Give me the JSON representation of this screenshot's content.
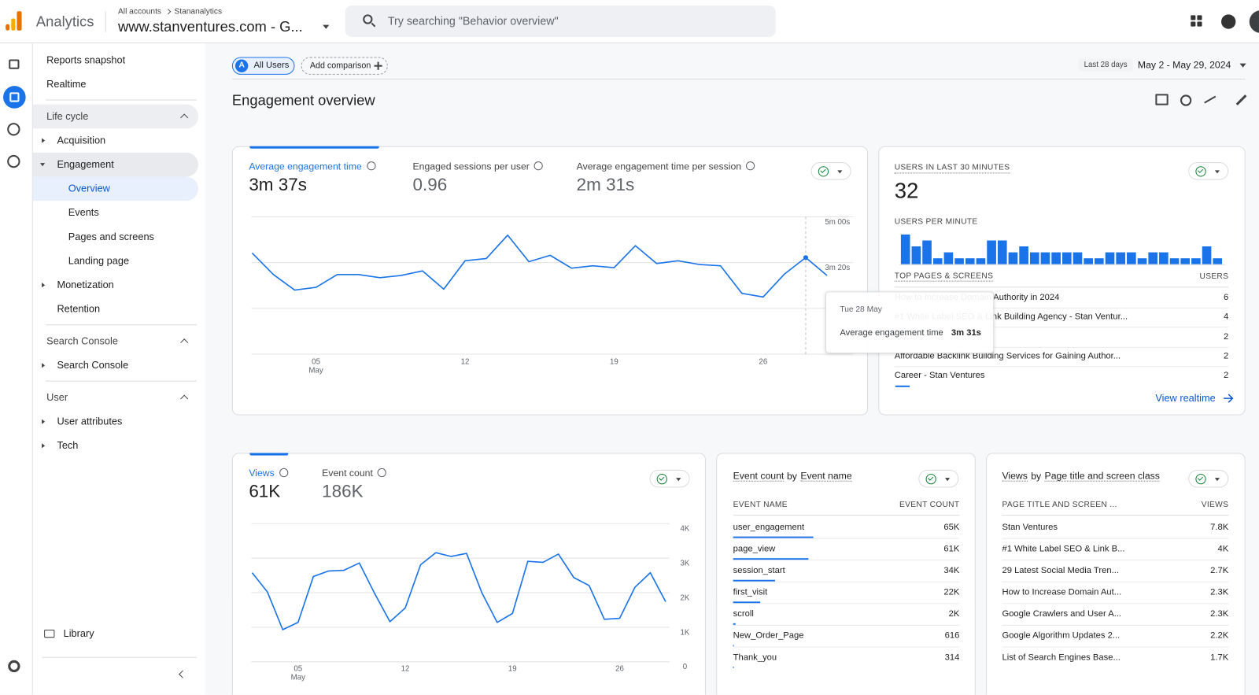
{
  "header": {
    "product": "Analytics",
    "breadcrumb": [
      "All accounts",
      "Stananalytics"
    ],
    "property": "www.stanventures.com - G...",
    "search_placeholder": "Try searching \"Behavior overview\""
  },
  "nav": {
    "top_items": [
      "Reports snapshot",
      "Realtime"
    ],
    "sections": [
      {
        "title": "Life cycle",
        "highlighted": true,
        "items": [
          {
            "label": "Acquisition",
            "expandable": true
          },
          {
            "label": "Engagement",
            "expandable": true,
            "children": [
              "Overview",
              "Events",
              "Pages and screens",
              "Landing page"
            ],
            "selected_child": 0
          },
          {
            "label": "Monetization",
            "expandable": true
          },
          {
            "label": "Retention",
            "expandable": false
          }
        ]
      },
      {
        "title": "Search Console",
        "highlighted": false,
        "items": [
          {
            "label": "Search Console",
            "expandable": true
          }
        ]
      },
      {
        "title": "User",
        "highlighted": false,
        "items": [
          {
            "label": "User attributes",
            "expandable": true
          },
          {
            "label": "Tech",
            "expandable": true
          }
        ]
      }
    ],
    "library": "Library"
  },
  "toolbar": {
    "segment_badge": "A",
    "segment": "All Users",
    "add_comparison": "Add comparison",
    "date_label": "Last 28 days",
    "date_range": "May 2 - May 29, 2024"
  },
  "page_title": "Engagement overview",
  "engagement_card": {
    "metrics": [
      {
        "label": "Average engagement time",
        "value": "3m 37s"
      },
      {
        "label": "Engaged sessions per user",
        "value": "0.96"
      },
      {
        "label": "Average engagement time per session",
        "value": "2m 31s"
      }
    ],
    "chart": {
      "type": "line",
      "color": "#1a73e8",
      "categories": [
        null,
        null,
        null,
        "05",
        null,
        null,
        null,
        null,
        null,
        null,
        "12",
        null,
        null,
        null,
        null,
        null,
        null,
        "19",
        null,
        null,
        null,
        null,
        null,
        null,
        "26",
        null,
        null,
        null
      ],
      "x_sublabel": "May",
      "values": [
        221,
        174,
        140,
        146,
        174,
        174,
        167,
        172,
        182,
        142,
        204,
        209,
        260,
        202,
        216,
        188,
        193,
        189,
        237,
        198,
        204,
        196,
        193,
        133,
        125,
        175,
        211,
        172
      ],
      "ylim": [
        0,
        300
      ],
      "yticks": [
        {
          "value": 300,
          "label": "5m 00s"
        },
        {
          "value": 200,
          "label": "3m 20s"
        }
      ]
    },
    "tooltip": {
      "index": 26,
      "date": "Tue 28 May",
      "label": "Average engagement time",
      "value": "3m 31s"
    }
  },
  "realtime_card": {
    "users_label": "USERS IN LAST 30 MINUTES",
    "users": 32,
    "per_minute_label": "USERS PER MINUTE",
    "per_minute_color": "#1a73e8",
    "per_minute": [
      5,
      3,
      4,
      1,
      2,
      1,
      1,
      1,
      4,
      4,
      2,
      3,
      2,
      2,
      2,
      2,
      2,
      1,
      1,
      2,
      2,
      2,
      1,
      2,
      2,
      1,
      1,
      1,
      3,
      1
    ],
    "table_header": [
      "TOP PAGES & SCREENS",
      "USERS"
    ],
    "rows": [
      [
        "How to Increase Domain Authority in 2024",
        6
      ],
      [
        "#1 White Label SEO & Link Building Agency - Stan Ventur...",
        4
      ],
      [
        null,
        2
      ],
      [
        "Affordable Backlink Building Services for Gaining Author...",
        2
      ],
      [
        "Career - Stan Ventures",
        2
      ]
    ],
    "link": "View realtime"
  },
  "views_card": {
    "metrics": [
      {
        "label": "Views",
        "value": "61K"
      },
      {
        "label": "Event count",
        "value": "186K"
      }
    ],
    "chart": {
      "type": "line",
      "color": "#1a73e8",
      "categories": [
        null,
        null,
        null,
        "05",
        null,
        null,
        null,
        null,
        null,
        null,
        "12",
        null,
        null,
        null,
        null,
        null,
        null,
        "19",
        null,
        null,
        null,
        null,
        null,
        null,
        "26",
        null,
        null,
        null
      ],
      "x_sublabel": "May",
      "values": [
        2580,
        2020,
        930,
        1140,
        2470,
        2630,
        2650,
        2860,
        1980,
        1160,
        1560,
        2810,
        3160,
        3050,
        3140,
        2000,
        1140,
        1400,
        2910,
        2880,
        3120,
        2440,
        2210,
        1230,
        1260,
        2160,
        2580,
        1740
      ],
      "ylim": [
        0,
        4000
      ],
      "yticks": [
        {
          "value": 4000,
          "label": "4K"
        },
        {
          "value": 3000,
          "label": "3K"
        },
        {
          "value": 2000,
          "label": "2K"
        },
        {
          "value": 1000,
          "label": "1K"
        },
        0
      ]
    }
  },
  "event_table": {
    "title_parts": [
      "Event count",
      "by",
      "Event name"
    ],
    "header": [
      "EVENT NAME",
      "EVENT COUNT"
    ],
    "categories": [
      "user_engagement",
      "page_view",
      "session_start",
      "first_visit",
      "scroll",
      "New_Order_Page",
      "Thank_you"
    ],
    "values": [
      65000,
      61000,
      34000,
      22000,
      2000,
      616,
      314
    ],
    "value_labels": [
      "65K",
      "61K",
      "34K",
      "22K",
      "2K",
      "616",
      "314"
    ],
    "color": "#1a73e8"
  },
  "views_table": {
    "title_parts": [
      "Views",
      "by",
      "Page title and screen class"
    ],
    "header": [
      "PAGE TITLE AND SCREEN ...",
      "VIEWS"
    ],
    "rows": [
      [
        "Stan Ventures",
        "7.8K"
      ],
      [
        "#1 White Label SEO & Link B...",
        "4K"
      ],
      [
        "29 Latest Social Media Tren...",
        "2.7K"
      ],
      [
        "How to Increase Domain Aut...",
        "2.3K"
      ],
      [
        "Google Crawlers and User A...",
        "2.3K"
      ],
      [
        "Google Algorithm Updates 2...",
        "2.2K"
      ],
      [
        "List of Search Engines Base...",
        "1.7K"
      ]
    ]
  }
}
